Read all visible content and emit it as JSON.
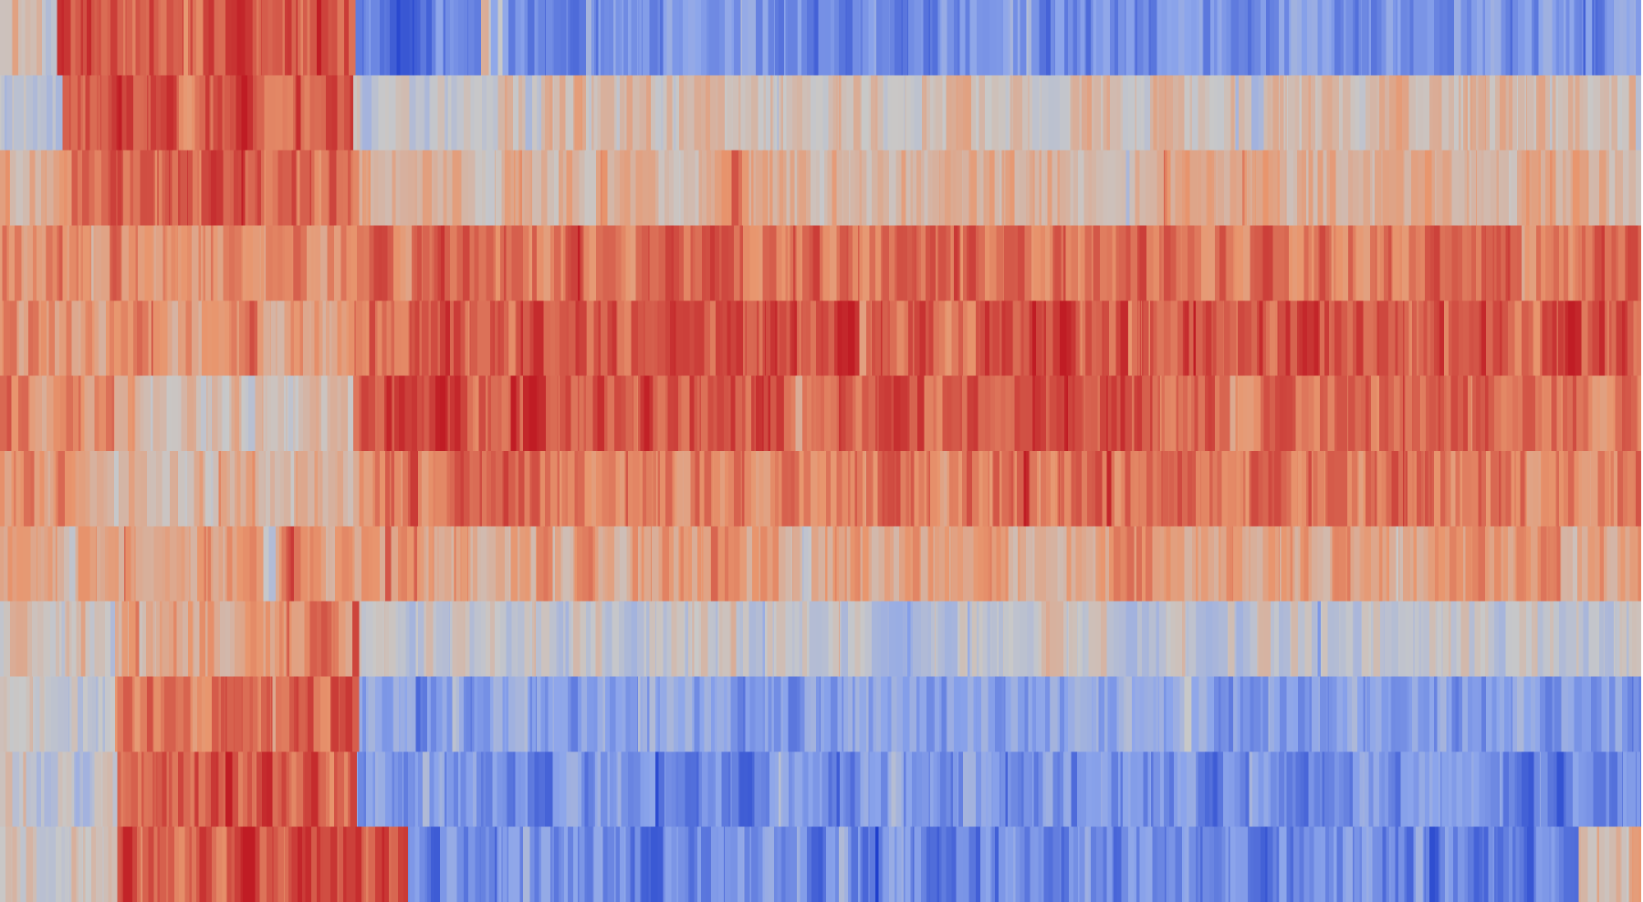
{
  "chart_data": {
    "type": "heatmap",
    "title": "",
    "xlabel": "",
    "ylabel": "",
    "axes_visible": false,
    "colorbar_visible": false,
    "colormap": "coolwarm",
    "value_range": [
      -1,
      1
    ],
    "low_color": "#1f3fcc",
    "mid_color": "#c8c8c8",
    "high_color": "#c01c24",
    "n_rows": 12,
    "n_cols": 1440,
    "row_segments": [
      [
        [
          0,
          0.0
        ],
        [
          50,
          0.75
        ],
        [
          310,
          -0.7
        ],
        [
          420,
          0.1
        ],
        [
          440,
          -0.55
        ],
        [
          1440,
          -0.45
        ]
      ],
      [
        [
          0,
          -0.1
        ],
        [
          50,
          0.7
        ],
        [
          310,
          -0.1
        ],
        [
          420,
          0.15
        ],
        [
          1440,
          0.05
        ]
      ],
      [
        [
          0,
          0.25
        ],
        [
          50,
          0.65
        ],
        [
          310,
          0.25
        ],
        [
          1440,
          0.3
        ]
      ],
      [
        [
          0,
          0.5
        ],
        [
          310,
          0.62
        ],
        [
          1440,
          0.55
        ]
      ],
      [
        [
          0,
          0.4
        ],
        [
          310,
          0.72
        ],
        [
          1440,
          0.7
        ]
      ],
      [
        [
          0,
          0.5
        ],
        [
          100,
          0.15
        ],
        [
          310,
          0.75
        ],
        [
          1000,
          0.62
        ],
        [
          1440,
          0.55
        ]
      ],
      [
        [
          0,
          0.45
        ],
        [
          100,
          0.2
        ],
        [
          310,
          0.58
        ],
        [
          1440,
          0.5
        ]
      ],
      [
        [
          0,
          0.35
        ],
        [
          250,
          0.6
        ],
        [
          270,
          0.35
        ],
        [
          1440,
          0.3
        ]
      ],
      [
        [
          0,
          0.1
        ],
        [
          100,
          0.4
        ],
        [
          250,
          0.55
        ],
        [
          310,
          -0.05
        ],
        [
          1440,
          0.02
        ]
      ],
      [
        [
          0,
          -0.1
        ],
        [
          100,
          0.62
        ],
        [
          310,
          -0.45
        ],
        [
          1440,
          -0.35
        ]
      ],
      [
        [
          0,
          -0.05
        ],
        [
          100,
          0.7
        ],
        [
          310,
          -0.55
        ],
        [
          1440,
          -0.5
        ]
      ],
      [
        [
          0,
          0.05
        ],
        [
          100,
          0.72
        ],
        [
          355,
          -0.6
        ],
        [
          1385,
          0.25
        ],
        [
          1440,
          0.3
        ]
      ]
    ]
  }
}
